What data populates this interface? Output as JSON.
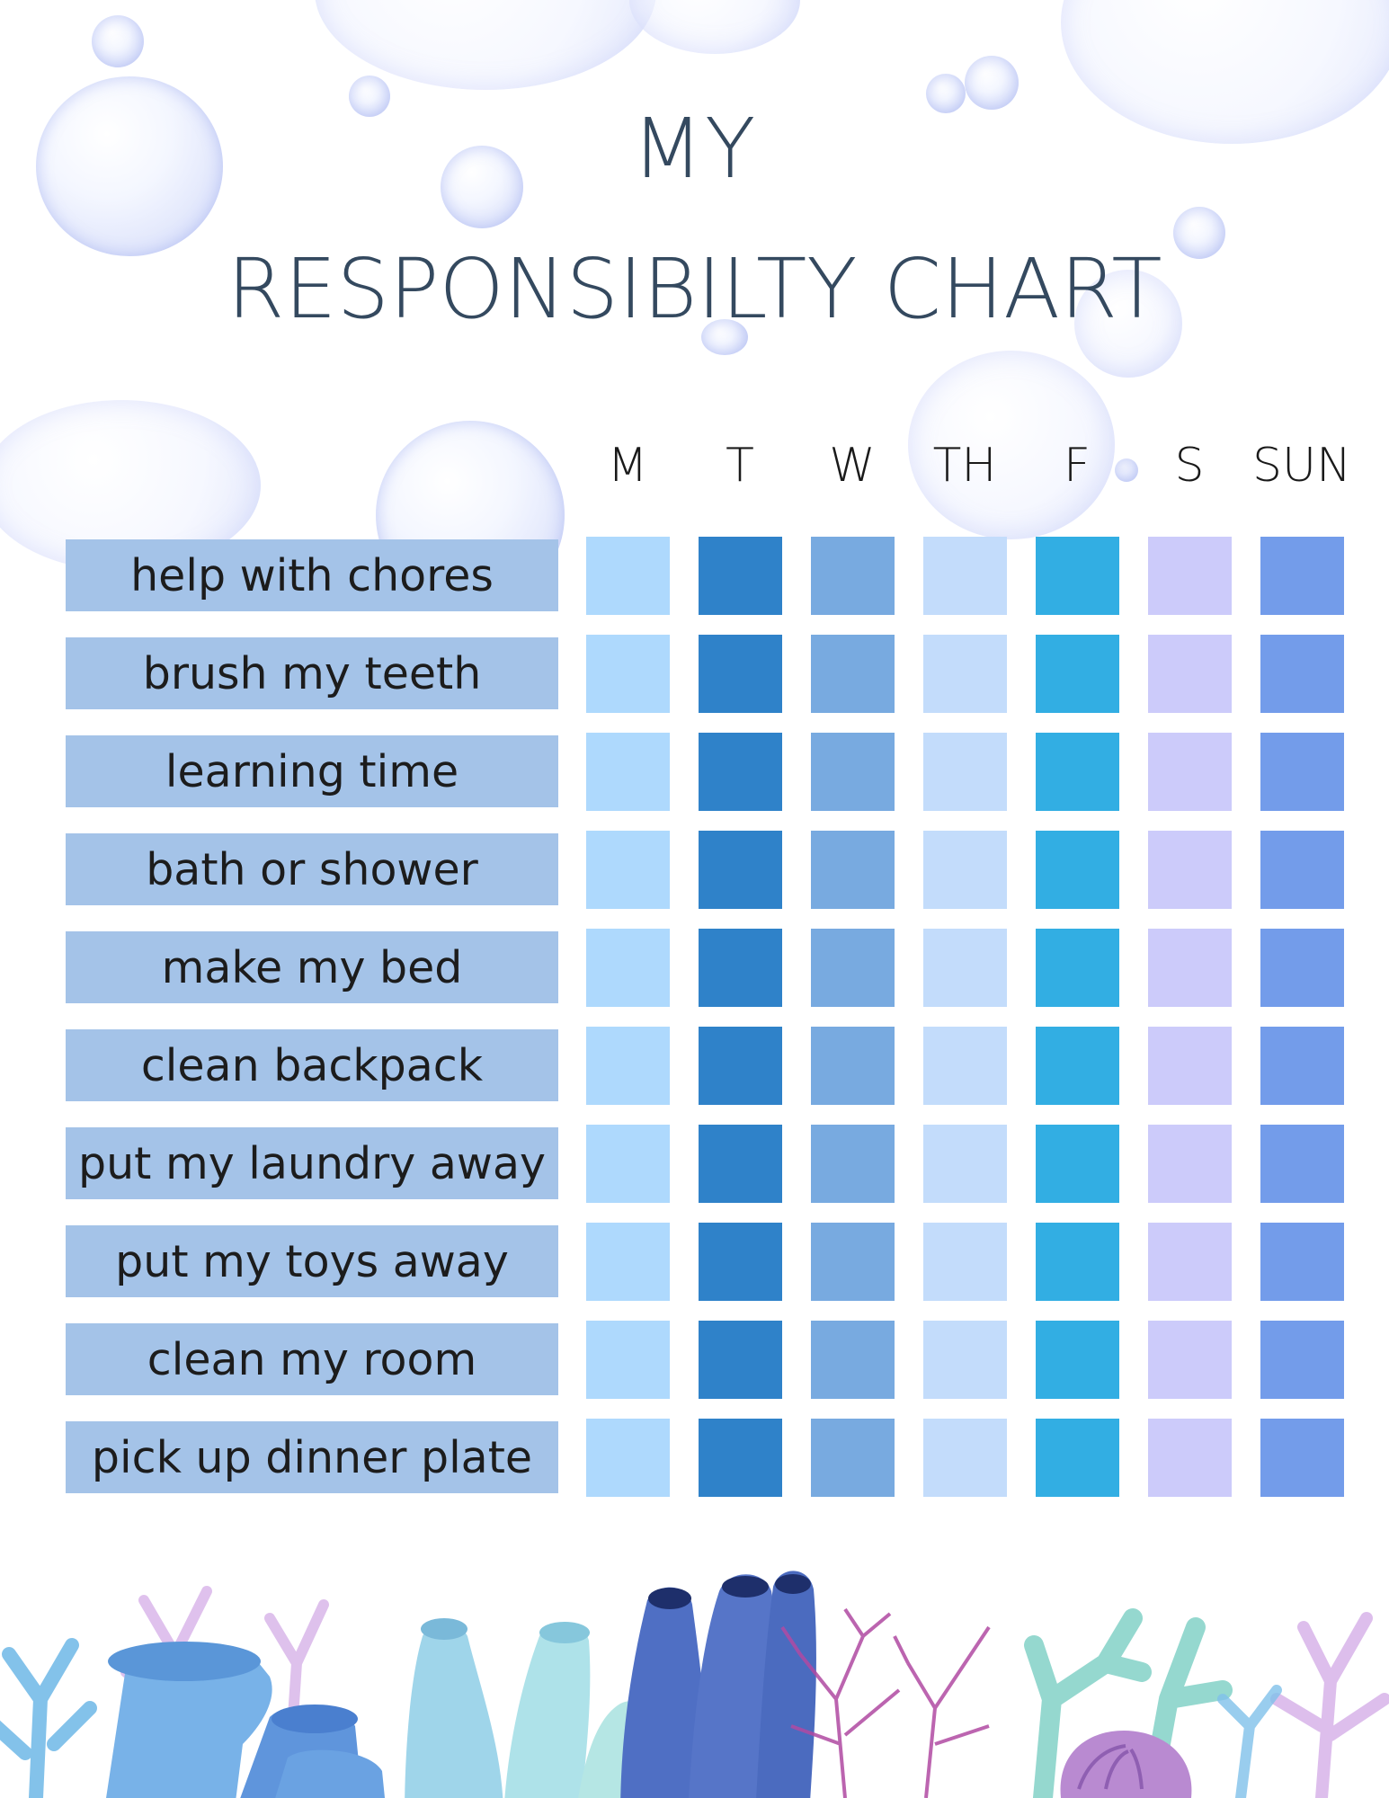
{
  "title": {
    "line1": "MY",
    "line2": "RESPONSIBILTY CHART"
  },
  "days": [
    "M",
    "T",
    "W",
    "TH",
    "F",
    "S",
    "SUN"
  ],
  "day_colors": [
    "#aed9fd",
    "#2f82c9",
    "#78aae0",
    "#c3dcfb",
    "#32aee3",
    "#cccbfa",
    "#739cea"
  ],
  "label_color": "#a4c3e8",
  "tasks": [
    "help with chores",
    "brush my teeth",
    "learning time",
    "bath or shower",
    "make my bed",
    "clean backpack",
    "put my laundry away",
    "put my toys away",
    "clean my room",
    "pick up dinner plate"
  ],
  "decorations": [
    "bubble",
    "coral-reef"
  ]
}
